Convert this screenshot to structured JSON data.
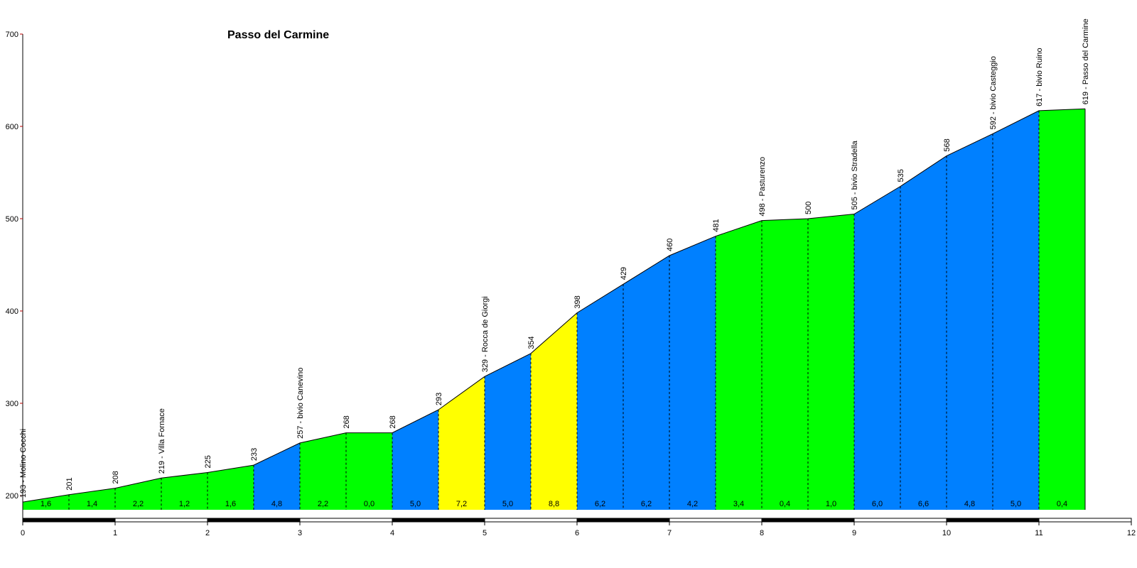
{
  "chart_data": {
    "type": "area",
    "title": "Passo del Carmine",
    "xlabel": "",
    "ylabel": "",
    "xlim": [
      0,
      12
    ],
    "ylim": [
      180,
      700
    ],
    "x_ticks": [
      "0",
      "1",
      "2",
      "3",
      "4",
      "5",
      "6",
      "7",
      "8",
      "9",
      "10",
      "11",
      "12"
    ],
    "y_ticks": [
      "200",
      "300",
      "400",
      "500",
      "600",
      "700"
    ],
    "colors": {
      "green": "#00ff00",
      "blue": "#0080ff",
      "yellow": "#ffff00"
    },
    "points": [
      {
        "x": 0.0,
        "y": 193,
        "label": "193 - Molino Cocchi"
      },
      {
        "x": 0.5,
        "y": 201,
        "label": "201"
      },
      {
        "x": 1.0,
        "y": 208,
        "label": "208"
      },
      {
        "x": 1.5,
        "y": 219,
        "label": "219 - Villa Fornace"
      },
      {
        "x": 2.0,
        "y": 225,
        "label": "225"
      },
      {
        "x": 2.5,
        "y": 233,
        "label": "233"
      },
      {
        "x": 3.0,
        "y": 257,
        "label": "257 - bivio Canevino"
      },
      {
        "x": 3.5,
        "y": 268,
        "label": "268"
      },
      {
        "x": 4.0,
        "y": 268,
        "label": "268"
      },
      {
        "x": 4.5,
        "y": 293,
        "label": "293"
      },
      {
        "x": 5.0,
        "y": 329,
        "label": "329 - Rocca de Giorgi"
      },
      {
        "x": 5.5,
        "y": 354,
        "label": "354"
      },
      {
        "x": 6.0,
        "y": 398,
        "label": "398"
      },
      {
        "x": 6.5,
        "y": 429,
        "label": "429"
      },
      {
        "x": 7.0,
        "y": 460,
        "label": "460"
      },
      {
        "x": 7.5,
        "y": 481,
        "label": "481"
      },
      {
        "x": 8.0,
        "y": 498,
        "label": "498 - Pasturenzo"
      },
      {
        "x": 8.5,
        "y": 500,
        "label": "500"
      },
      {
        "x": 9.0,
        "y": 505,
        "label": "505 - bivio Stradella"
      },
      {
        "x": 9.5,
        "y": 535,
        "label": "535"
      },
      {
        "x": 10.0,
        "y": 568,
        "label": "568"
      },
      {
        "x": 10.5,
        "y": 592,
        "label": "592 - bivio Casteggio"
      },
      {
        "x": 11.0,
        "y": 617,
        "label": "617 - bivio Ruino"
      },
      {
        "x": 11.5,
        "y": 619,
        "label": "619 - Passo del Carmine"
      }
    ],
    "segments": [
      {
        "grade": "1,6",
        "color": "green"
      },
      {
        "grade": "1,4",
        "color": "green"
      },
      {
        "grade": "2,2",
        "color": "green"
      },
      {
        "grade": "1,2",
        "color": "green"
      },
      {
        "grade": "1,6",
        "color": "green"
      },
      {
        "grade": "4,8",
        "color": "blue"
      },
      {
        "grade": "2,2",
        "color": "green"
      },
      {
        "grade": "0,0",
        "color": "green"
      },
      {
        "grade": "5,0",
        "color": "blue"
      },
      {
        "grade": "7,2",
        "color": "yellow"
      },
      {
        "grade": "5,0",
        "color": "blue"
      },
      {
        "grade": "8,8",
        "color": "yellow"
      },
      {
        "grade": "6,2",
        "color": "blue"
      },
      {
        "grade": "6,2",
        "color": "blue"
      },
      {
        "grade": "4,2",
        "color": "blue"
      },
      {
        "grade": "3,4",
        "color": "green"
      },
      {
        "grade": "0,4",
        "color": "green"
      },
      {
        "grade": "1,0",
        "color": "green"
      },
      {
        "grade": "6,0",
        "color": "blue"
      },
      {
        "grade": "6,6",
        "color": "blue"
      },
      {
        "grade": "4,8",
        "color": "blue"
      },
      {
        "grade": "5,0",
        "color": "blue"
      },
      {
        "grade": "0,4",
        "color": "green"
      }
    ]
  }
}
